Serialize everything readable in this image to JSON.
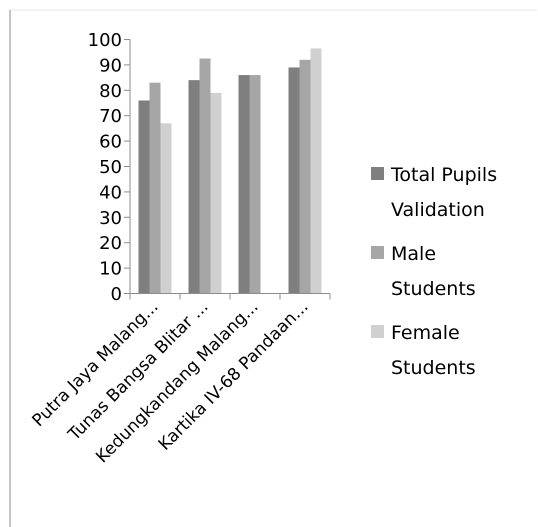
{
  "chart_data": {
    "type": "bar",
    "categories": [
      "Putra Jaya Malang...",
      "Tunas Bangsa Blitar ...",
      "Kedungkandang Malang...",
      "Kartika IV-68 Pandaan..."
    ],
    "series": [
      {
        "name": "Total Pupils Validation",
        "values": [
          76,
          84,
          86,
          89
        ],
        "color": "#7f7f7f"
      },
      {
        "name": "Male Students",
        "values": [
          83,
          92.5,
          86,
          92
        ],
        "color": "#a6a6a6"
      },
      {
        "name": "Female Students",
        "values": [
          67,
          79,
          null,
          96.5
        ],
        "color": "#d0d0d0"
      }
    ],
    "legend_lines": [
      [
        "Total Pupils",
        "Validation"
      ],
      [
        "Male",
        "Students"
      ],
      [
        "Female",
        "Students"
      ]
    ],
    "ylim": [
      0,
      100
    ],
    "yticks": [
      0,
      10,
      20,
      30,
      40,
      50,
      60,
      70,
      80,
      90,
      100
    ],
    "title": "",
    "xlabel": "",
    "ylabel": "",
    "grid": false,
    "legend_position": "right"
  }
}
